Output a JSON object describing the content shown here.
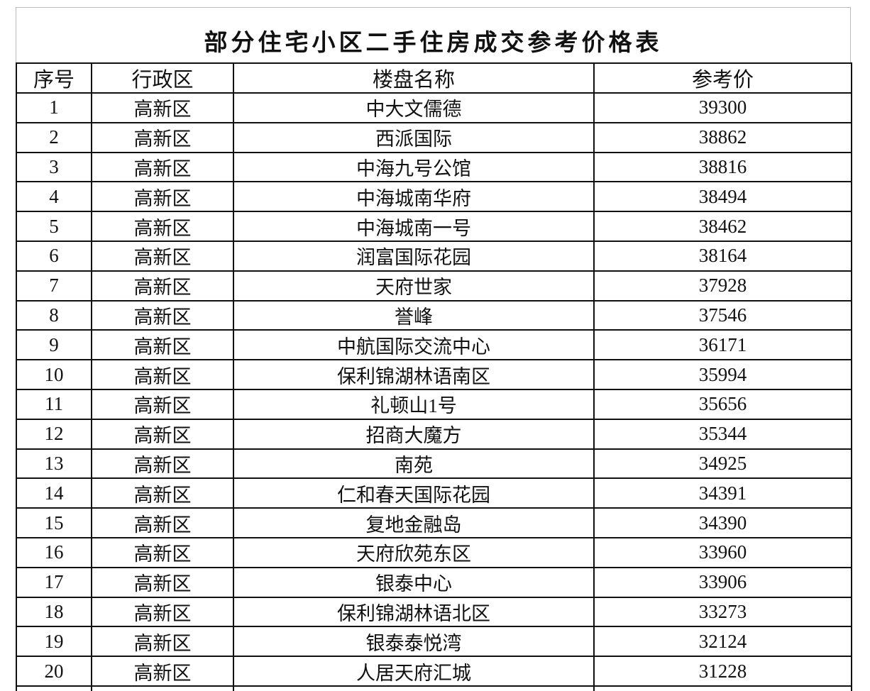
{
  "header": {
    "title": "部分住宅小区二手住房成交参考价格表"
  },
  "table": {
    "columns": [
      "序号",
      "行政区",
      "楼盘名称",
      "参考价"
    ],
    "rows": [
      [
        1,
        "高新区",
        "中大文儒德",
        39300
      ],
      [
        2,
        "高新区",
        "西派国际",
        38862
      ],
      [
        3,
        "高新区",
        "中海九号公馆",
        38816
      ],
      [
        4,
        "高新区",
        "中海城南华府",
        38494
      ],
      [
        5,
        "高新区",
        "中海城南一号",
        38462
      ],
      [
        6,
        "高新区",
        "润富国际花园",
        38164
      ],
      [
        7,
        "高新区",
        "天府世家",
        37928
      ],
      [
        8,
        "高新区",
        "誉峰",
        37546
      ],
      [
        9,
        "高新区",
        "中航国际交流中心",
        36171
      ],
      [
        10,
        "高新区",
        "保利锦湖林语南区",
        35994
      ],
      [
        11,
        "高新区",
        "礼顿山1号",
        35656
      ],
      [
        12,
        "高新区",
        "招商大魔方",
        35344
      ],
      [
        13,
        "高新区",
        "南苑",
        34925
      ],
      [
        14,
        "高新区",
        "仁和春天国际花园",
        34391
      ],
      [
        15,
        "高新区",
        "复地金融岛",
        34390
      ],
      [
        16,
        "高新区",
        "天府欣苑东区",
        33960
      ],
      [
        17,
        "高新区",
        "银泰中心",
        33906
      ],
      [
        18,
        "高新区",
        "保利锦湖林语北区",
        33273
      ],
      [
        19,
        "高新区",
        "银泰泰悦湾",
        32124
      ],
      [
        20,
        "高新区",
        "人居天府汇城",
        31228
      ]
    ]
  }
}
